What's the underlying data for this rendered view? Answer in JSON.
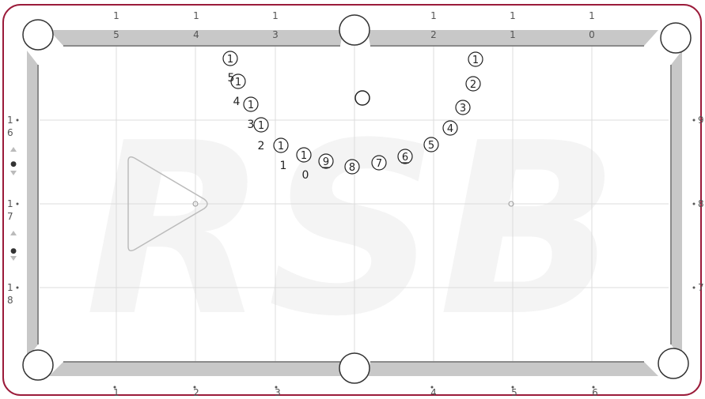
{
  "watermark": "RSB",
  "colors": {
    "frame": "#9b1b3a",
    "rail": "#c8c8c8",
    "cushion": "#8a8a8a",
    "grid": "#dcdcdc",
    "ball_outline": "#222222",
    "label": "#555555"
  },
  "top_labels": [
    {
      "upper": "1",
      "lower": "5"
    },
    {
      "upper": "1",
      "lower": "4"
    },
    {
      "upper": "1",
      "lower": "3"
    },
    {
      "upper": "1",
      "lower": "2"
    },
    {
      "upper": "1",
      "lower": "1"
    },
    {
      "upper": "1",
      "lower": "0"
    }
  ],
  "bottom_labels": [
    "1",
    "2",
    "3",
    "4",
    "5",
    "6"
  ],
  "left_labels": [
    {
      "upper": "1",
      "lower": "6"
    },
    {
      "upper": "1",
      "lower": "7"
    },
    {
      "upper": "1",
      "lower": "8"
    }
  ],
  "right_labels": [
    "9",
    "8",
    "7"
  ],
  "balls": [
    {
      "label": "15",
      "number": "1"
    },
    {
      "label": "14",
      "number": "1"
    },
    {
      "label": "13",
      "number": "1"
    },
    {
      "label": "12",
      "number": "1"
    },
    {
      "label": "11",
      "number": "1"
    },
    {
      "label": "10",
      "number": "1"
    },
    {
      "label": "9",
      "number": "9"
    },
    {
      "label": "8",
      "number": "8"
    },
    {
      "label": "7",
      "number": "7"
    },
    {
      "label": "6",
      "number": "6"
    },
    {
      "label": "5",
      "number": "5"
    },
    {
      "label": "4",
      "number": "4"
    },
    {
      "label": "3",
      "number": "3"
    },
    {
      "label": "2",
      "number": "2"
    },
    {
      "label": "1",
      "number": "1"
    }
  ],
  "stray_digits": [
    "5",
    "4",
    "3",
    "2",
    "1",
    "0"
  ]
}
